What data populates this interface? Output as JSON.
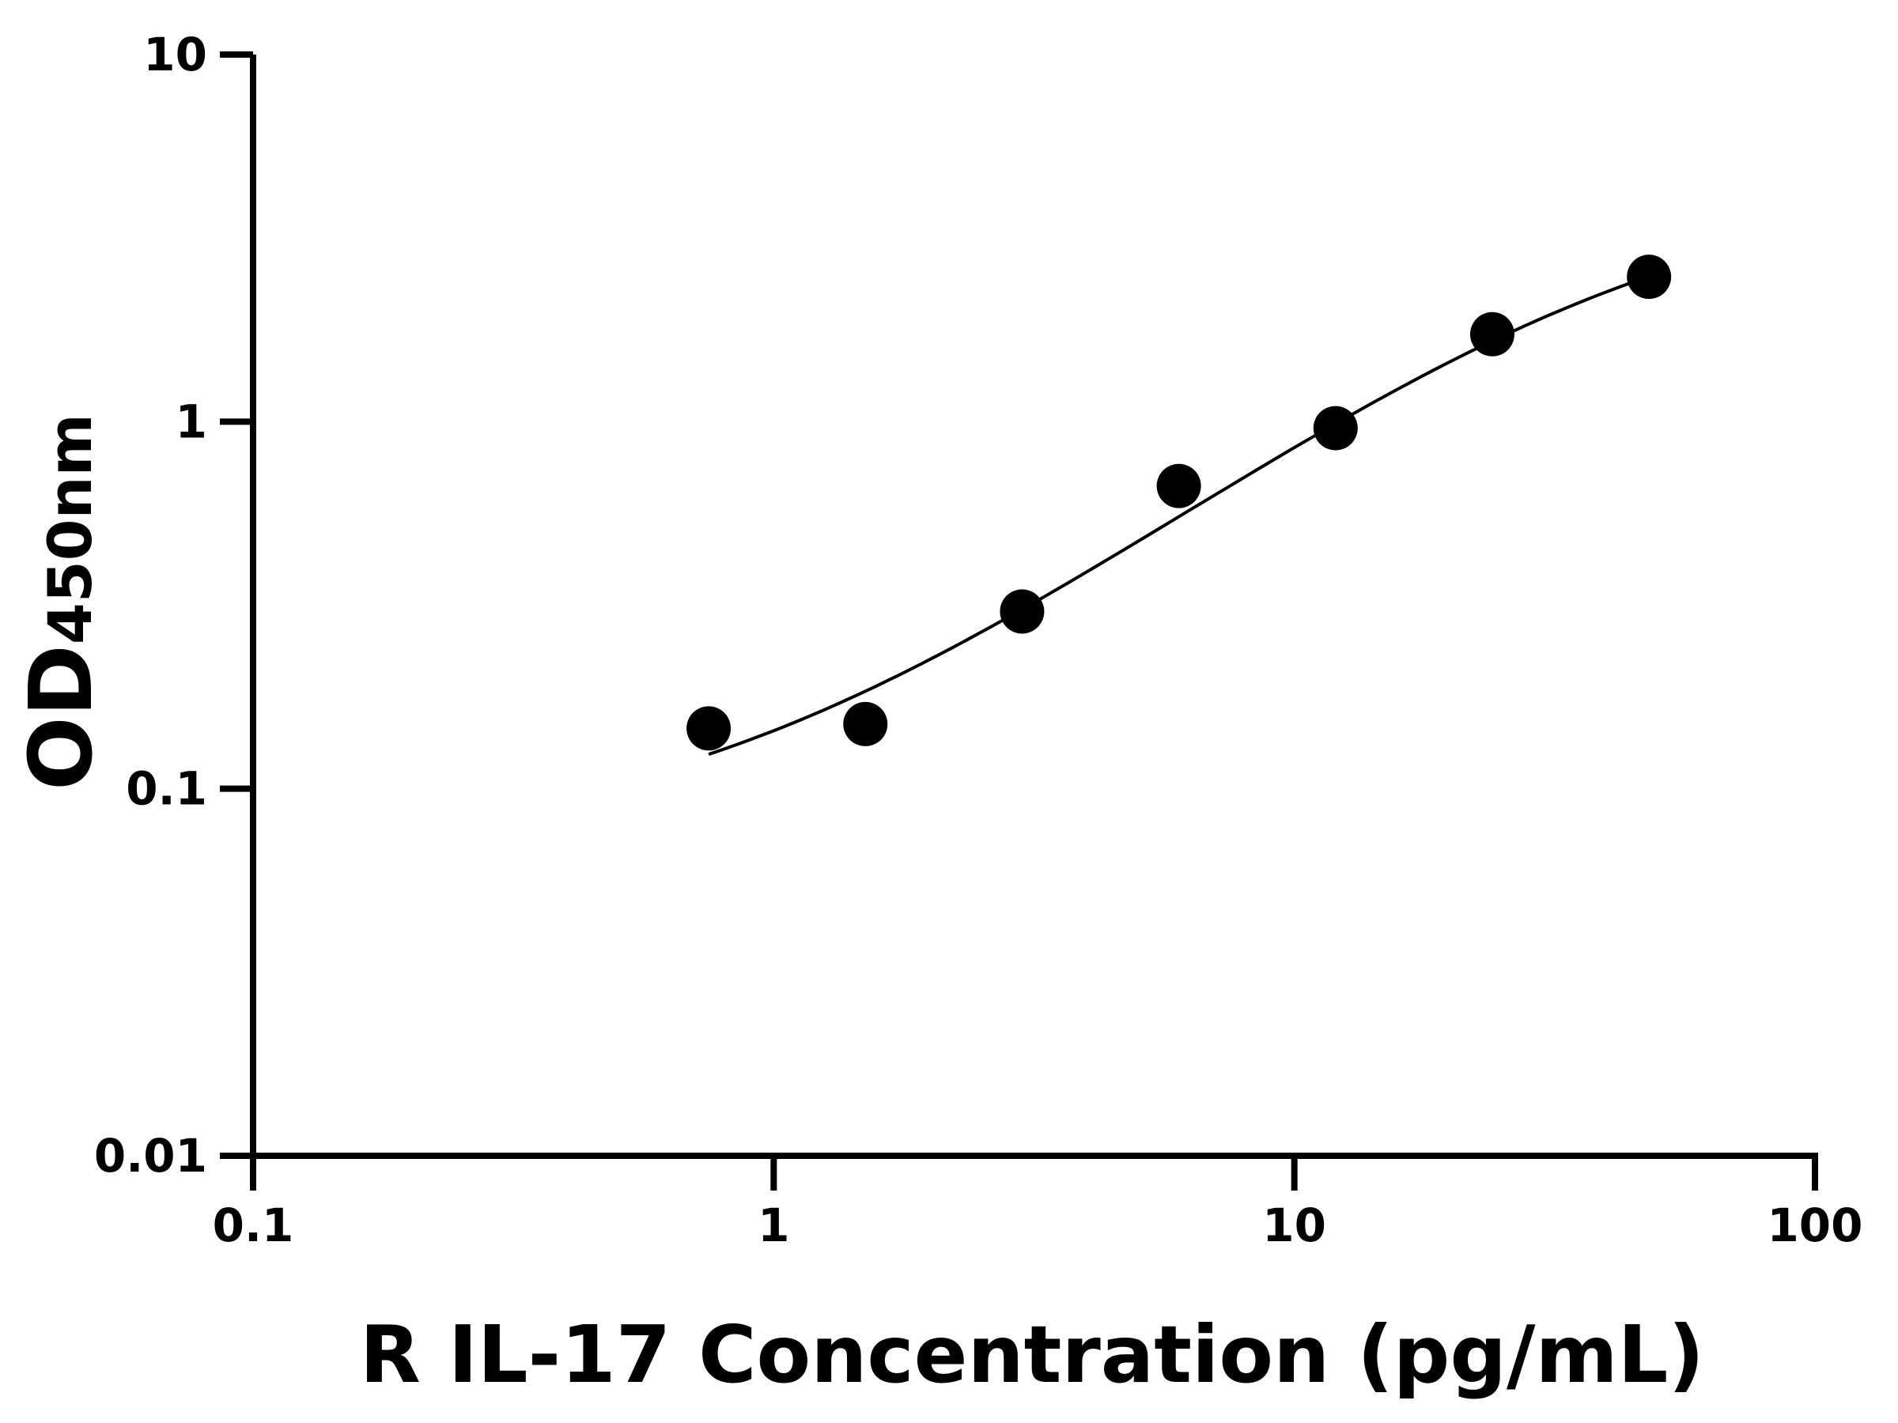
{
  "chart_data": {
    "type": "scatter",
    "title": "",
    "xlabel": "R IL-17 Concentration (pg/mL)",
    "ylabel": {
      "main": "OD",
      "subscript": "450nm"
    },
    "xscale": "log",
    "yscale": "log",
    "xlim": [
      0.1,
      100
    ],
    "ylim": [
      0.01,
      10
    ],
    "xticks": [
      "0.1",
      "1",
      "10",
      "100"
    ],
    "yticks": [
      "0.01",
      "0.1",
      "1",
      "10"
    ],
    "grid": false,
    "legend": "none",
    "points": {
      "x": [
        0.75,
        1.5,
        3,
        6,
        12,
        24,
        48
      ],
      "y": [
        0.146,
        0.15,
        0.304,
        0.668,
        0.96,
        1.73,
        2.48
      ]
    },
    "curve": {
      "model": "4PL",
      "bottom": 0.07,
      "top": 4.5,
      "ec50": 40.7,
      "hill": 1.1,
      "x_range": [
        0.75,
        48
      ]
    },
    "colors": {
      "points": "#000000",
      "curve": "#000000",
      "axes": "#000000"
    }
  }
}
